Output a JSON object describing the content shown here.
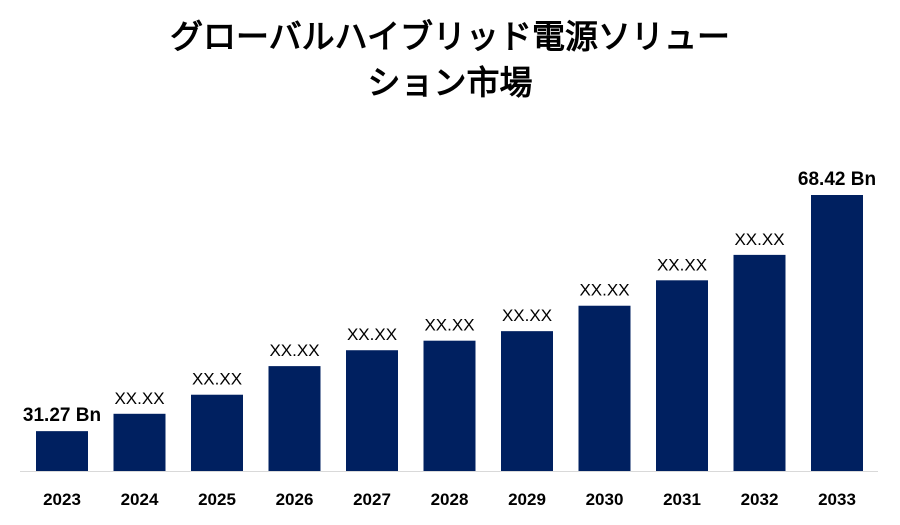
{
  "chart_data": {
    "type": "bar",
    "title_lines": [
      "グローバルハイブリッド電源ソリュー",
      "ション市場"
    ],
    "categories": [
      "2023",
      "2024",
      "2025",
      "2026",
      "2027",
      "2028",
      "2029",
      "2030",
      "2031",
      "2032",
      "2033"
    ],
    "values": [
      31.27,
      34.0,
      37.0,
      41.5,
      44.0,
      45.5,
      47.0,
      51.0,
      55.0,
      59.0,
      68.42
    ],
    "data_labels": [
      "31.27 Bn",
      "XX.XX",
      "XX.XX",
      "XX.XX",
      "XX.XX",
      "XX.XX",
      "XX.XX",
      "XX.XX",
      "XX.XX",
      "XX.XX",
      "68.42 Bn"
    ],
    "xlabel": "",
    "ylabel": "",
    "ylim": [
      25,
      70
    ],
    "grid": false,
    "legend": "none",
    "bar_color": "#002060"
  }
}
